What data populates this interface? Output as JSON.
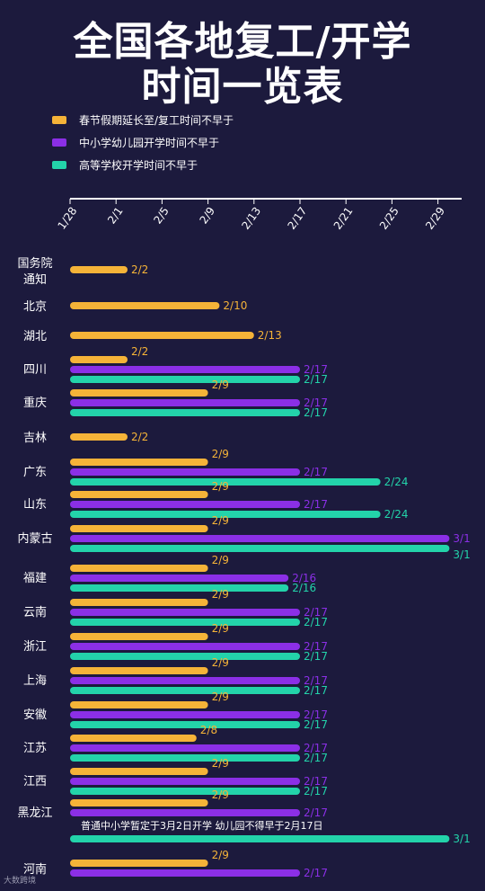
{
  "title_line1": "全国各地复工/开学",
  "title_line2": "时间一览表",
  "watermark": "大数跨境",
  "colors": {
    "background": "#1c1a3d",
    "orange": "#f5b338",
    "purple": "#8b2fe6",
    "teal": "#23d3aa",
    "axis": "#ffffff"
  },
  "legend": [
    {
      "label": "春节假期延长至/复工时间不早于",
      "color": "#f5b338"
    },
    {
      "label": "中小学幼儿园开学时间不早于",
      "color": "#8b2fe6"
    },
    {
      "label": "高等学校开学时间不早于",
      "color": "#23d3aa"
    }
  ],
  "chart_data": {
    "type": "bar",
    "orientation": "horizontal",
    "x_ticks": [
      "1/28",
      "2/1",
      "2/5",
      "2/9",
      "2/13",
      "2/17",
      "2/21",
      "2/25",
      "2/29"
    ],
    "x_tick_values": [
      0,
      4,
      8,
      12,
      16,
      20,
      24,
      28,
      32
    ],
    "x_origin": "1/28",
    "xlim": [
      0,
      33
    ],
    "series_names": [
      "春节假期延长至/复工时间不早于",
      "中小学幼儿园开学时间不早于",
      "高等学校开学时间不早于"
    ],
    "annotation": "普通中小学暂定于3月2日开学 幼儿园不得早于2月17日",
    "regions": [
      {
        "name": "国务院\n通知",
        "bars": [
          {
            "s": 0,
            "v": 5,
            "label": "2/2"
          }
        ]
      },
      {
        "name": "北京",
        "bars": [
          {
            "s": 0,
            "v": 13,
            "label": "2/10"
          }
        ]
      },
      {
        "name": "湖北",
        "bars": [
          {
            "s": 0,
            "v": 16,
            "label": "2/13"
          }
        ]
      },
      {
        "name": "四川",
        "bars": [
          {
            "s": 0,
            "v": 5,
            "label": "2/2"
          },
          {
            "s": 1,
            "v": 20,
            "label": "2/17"
          },
          {
            "s": 2,
            "v": 20,
            "label": "2/17"
          }
        ]
      },
      {
        "name": "重庆",
        "bars": [
          {
            "s": 0,
            "v": 12,
            "label": "2/9"
          },
          {
            "s": 1,
            "v": 20,
            "label": "2/17"
          },
          {
            "s": 2,
            "v": 20,
            "label": "2/17"
          }
        ]
      },
      {
        "name": "吉林",
        "bars": [
          {
            "s": 0,
            "v": 5,
            "label": "2/2"
          }
        ]
      },
      {
        "name": "广东",
        "bars": [
          {
            "s": 0,
            "v": 12,
            "label": "2/9"
          },
          {
            "s": 1,
            "v": 20,
            "label": "2/17"
          },
          {
            "s": 2,
            "v": 27,
            "label": "2/24"
          }
        ]
      },
      {
        "name": "山东",
        "bars": [
          {
            "s": 0,
            "v": 12,
            "label": "2/9"
          },
          {
            "s": 1,
            "v": 20,
            "label": "2/17"
          },
          {
            "s": 2,
            "v": 27,
            "label": "2/24"
          }
        ]
      },
      {
        "name": "内蒙古",
        "bars": [
          {
            "s": 0,
            "v": 12,
            "label": "2/9"
          },
          {
            "s": 1,
            "v": 33,
            "label": "3/1"
          },
          {
            "s": 2,
            "v": 33,
            "label": "3/1"
          }
        ]
      },
      {
        "name": "福建",
        "bars": [
          {
            "s": 0,
            "v": 12,
            "label": "2/9"
          },
          {
            "s": 1,
            "v": 19,
            "label": "2/16"
          },
          {
            "s": 2,
            "v": 19,
            "label": "2/16"
          }
        ]
      },
      {
        "name": "云南",
        "bars": [
          {
            "s": 0,
            "v": 12,
            "label": "2/9"
          },
          {
            "s": 1,
            "v": 20,
            "label": "2/17"
          },
          {
            "s": 2,
            "v": 20,
            "label": "2/17"
          }
        ]
      },
      {
        "name": "浙江",
        "bars": [
          {
            "s": 0,
            "v": 12,
            "label": "2/9"
          },
          {
            "s": 1,
            "v": 20,
            "label": "2/17"
          },
          {
            "s": 2,
            "v": 20,
            "label": "2/17"
          }
        ]
      },
      {
        "name": "上海",
        "bars": [
          {
            "s": 0,
            "v": 12,
            "label": "2/9"
          },
          {
            "s": 1,
            "v": 20,
            "label": "2/17"
          },
          {
            "s": 2,
            "v": 20,
            "label": "2/17"
          }
        ]
      },
      {
        "name": "安徽",
        "bars": [
          {
            "s": 0,
            "v": 12,
            "label": "2/9"
          },
          {
            "s": 1,
            "v": 20,
            "label": "2/17"
          },
          {
            "s": 2,
            "v": 20,
            "label": "2/17"
          }
        ]
      },
      {
        "name": "江苏",
        "bars": [
          {
            "s": 0,
            "v": 11,
            "label": "2/8"
          },
          {
            "s": 1,
            "v": 20,
            "label": "2/17"
          },
          {
            "s": 2,
            "v": 20,
            "label": "2/17"
          }
        ]
      },
      {
        "name": "江西",
        "bars": [
          {
            "s": 0,
            "v": 12,
            "label": "2/9"
          },
          {
            "s": 1,
            "v": 20,
            "label": "2/17"
          },
          {
            "s": 2,
            "v": 20,
            "label": "2/17"
          }
        ]
      },
      {
        "name": "黑龙江",
        "bars": [
          {
            "s": 0,
            "v": 12,
            "label": "2/9"
          },
          {
            "s": 1,
            "v": 20,
            "label": "2/17"
          },
          {
            "s": 2,
            "v": 33,
            "label": "3/1"
          }
        ]
      },
      {
        "name": "河南",
        "bars": [
          {
            "s": 0,
            "v": 12,
            "label": "2/9"
          },
          {
            "s": 1,
            "v": 20,
            "label": "2/17"
          }
        ]
      }
    ]
  }
}
